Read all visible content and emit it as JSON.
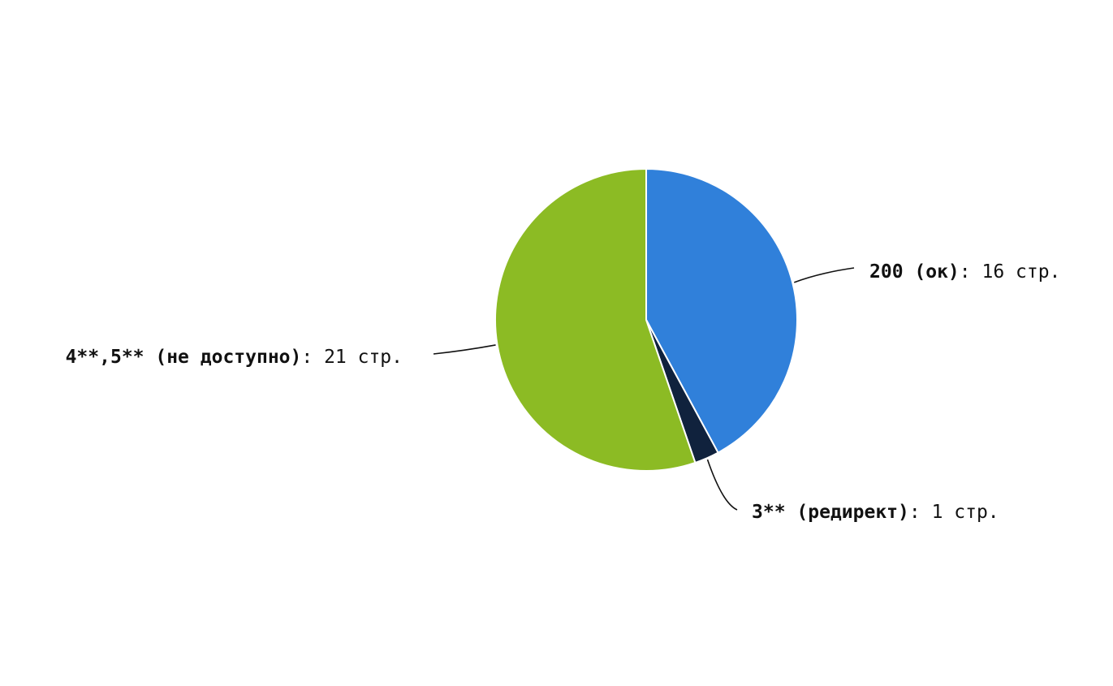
{
  "chart_data": {
    "type": "pie",
    "title": "",
    "unit": "стр.",
    "separator": ": ",
    "start_angle_deg": 0,
    "direction": "clockwise",
    "slices": [
      {
        "name": "200 (ок)",
        "value": 16,
        "value_label": "16 стр.",
        "color": "#3080da"
      },
      {
        "name": "3** (редирект)",
        "value": 1,
        "value_label": "1 стр.",
        "color": "#10223d"
      },
      {
        "name": "4**,5** (не доступно)",
        "value": 21,
        "value_label": "21 стр.",
        "color": "#8cbb24"
      }
    ]
  }
}
